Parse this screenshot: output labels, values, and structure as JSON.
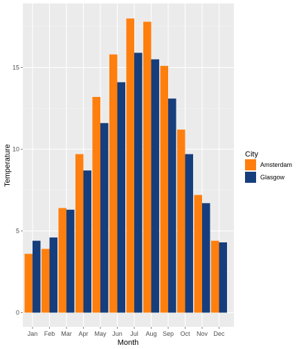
{
  "chart_data": {
    "type": "bar",
    "xlabel": "Month",
    "ylabel": "Temperature",
    "categories": [
      "Jan",
      "Feb",
      "Mar",
      "Apr",
      "May",
      "Jun",
      "Jul",
      "Aug",
      "Sep",
      "Oct",
      "Nov",
      "Dec"
    ],
    "series": [
      {
        "name": "Amsterdam",
        "color": "#ff7f0e",
        "values": [
          3.6,
          3.9,
          6.4,
          9.7,
          13.2,
          15.8,
          18.0,
          17.8,
          15.1,
          11.2,
          7.2,
          4.4
        ]
      },
      {
        "name": "Glasgow",
        "color": "#163e7c",
        "values": [
          4.4,
          4.6,
          6.3,
          8.7,
          11.6,
          14.1,
          15.9,
          15.5,
          13.1,
          9.7,
          6.7,
          4.3
        ]
      }
    ],
    "ylim": [
      -0.8,
      18.9
    ],
    "yticks": [
      0,
      5,
      10,
      15
    ],
    "grid": true,
    "legend": {
      "title": "City",
      "position": "right"
    },
    "panel_background": "#ebebeb"
  }
}
